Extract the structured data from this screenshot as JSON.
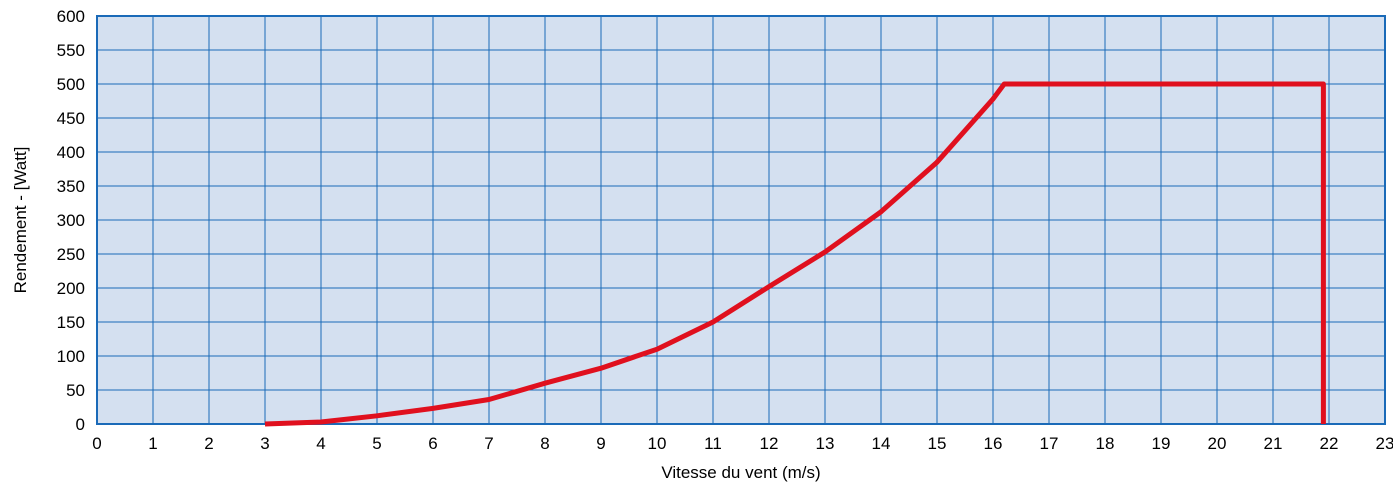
{
  "chart_data": {
    "type": "line",
    "title": "",
    "xlabel": "Vitesse du vent (m/s)",
    "ylabel": "Rendement  - [Watt]",
    "xlim": [
      0,
      23
    ],
    "ylim": [
      0,
      600
    ],
    "x_ticks": [
      "0",
      "1",
      "2",
      "3",
      "4",
      "5",
      "6",
      "7",
      "8",
      "9",
      "10",
      "11",
      "12",
      "13",
      "14",
      "15",
      "16",
      "17",
      "18",
      "19",
      "20",
      "21",
      "22",
      "23"
    ],
    "y_ticks": [
      "0",
      "50",
      "100",
      "150",
      "200",
      "250",
      "300",
      "350",
      "400",
      "450",
      "500",
      "550",
      "600"
    ],
    "grid": true,
    "legend": "none",
    "colors": {
      "plot_background": "#d4e0f0",
      "grid": "#1a6ab8",
      "frame": "#1a6ab8",
      "series": "#e0101e"
    },
    "series": [
      {
        "x": [
          3,
          4,
          5,
          6,
          7,
          8,
          9,
          10,
          11,
          12,
          13,
          14,
          15,
          16,
          16.2,
          21.9,
          21.9
        ],
        "y": [
          0,
          3,
          12,
          23,
          36,
          60,
          82,
          110,
          150,
          202,
          253,
          312,
          385,
          478,
          500,
          500,
          0
        ]
      }
    ]
  }
}
